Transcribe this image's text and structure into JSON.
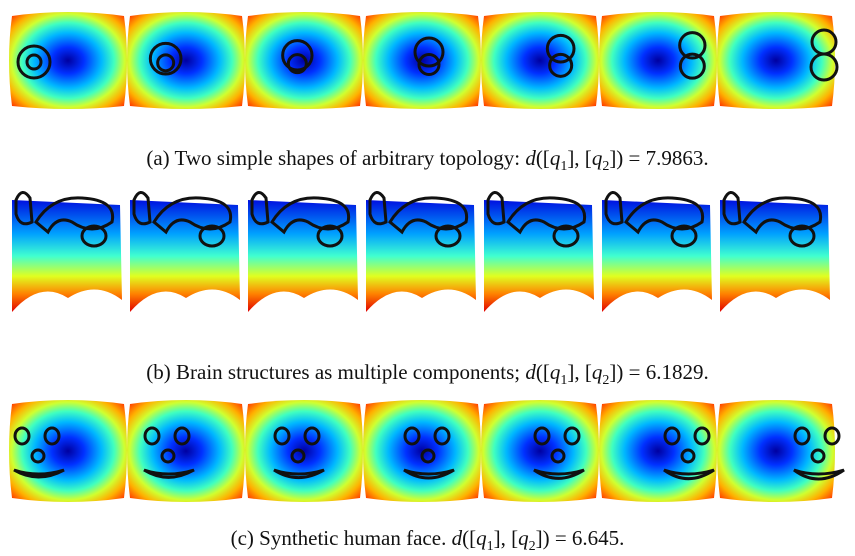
{
  "panels": [
    {
      "label": "(a)",
      "caption": "Two simple shapes of arbitrary topology:",
      "formula": [
        {
          "t": "d",
          "i": true
        },
        {
          "t": "(["
        },
        {
          "t": "q",
          "i": true
        },
        {
          "t": "1",
          "sub": true
        },
        {
          "t": "], ["
        },
        {
          "t": "q",
          "i": true
        },
        {
          "t": "2",
          "sub": true
        },
        {
          "t": "]) = "
        }
      ],
      "value": 7.9863,
      "end": "."
    },
    {
      "label": "(b)",
      "caption": "Brain structures as multiple components;",
      "formula": [
        {
          "t": "d",
          "i": true
        },
        {
          "t": "(["
        },
        {
          "t": "q",
          "i": true
        },
        {
          "t": "1",
          "sub": true
        },
        {
          "t": "], ["
        },
        {
          "t": "q",
          "i": true
        },
        {
          "t": "2",
          "sub": true
        },
        {
          "t": "]) = "
        }
      ],
      "value": 6.1829,
      "end": "."
    },
    {
      "label": "(c)",
      "caption": "Synthetic human face.",
      "formula": [
        {
          "t": "d",
          "i": true
        },
        {
          "t": "(["
        },
        {
          "t": "q",
          "i": true
        },
        {
          "t": "1",
          "sub": true
        },
        {
          "t": "], ["
        },
        {
          "t": "q",
          "i": true
        },
        {
          "t": "2",
          "sub": true
        },
        {
          "t": "]) = "
        }
      ],
      "value": 6.645,
      "end": "."
    }
  ]
}
